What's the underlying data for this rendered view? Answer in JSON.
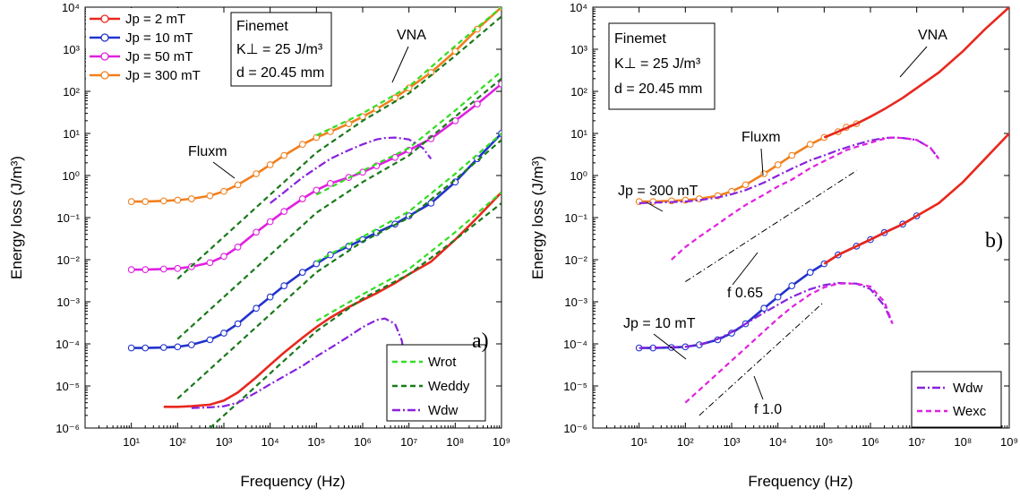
{
  "chart_data": [
    {
      "panel": "a)",
      "type": "line",
      "xlabel": "Frequency (Hz)",
      "ylabel": "Energy loss (J/m³)",
      "xscale": "log",
      "yscale": "log",
      "xlim": [
        1.0,
        1000000000.0
      ],
      "ylim": [
        1e-06,
        10000.0
      ],
      "grid": false,
      "xticks": [
        "10¹",
        "10²",
        "10³",
        "10⁴",
        "10⁵",
        "10⁶",
        "10⁷",
        "10⁸",
        "10⁹"
      ],
      "yticks": [
        "10⁻⁶",
        "10⁻⁵",
        "10⁻⁴",
        "10⁻³",
        "10⁻²",
        "10⁻¹",
        "10⁰",
        "10¹",
        "10²",
        "10³",
        "10⁴"
      ],
      "info_box": [
        "Finemet",
        "K⊥ = 25 J/m³",
        "d = 20.45 mm"
      ],
      "annotations": [
        {
          "text": "VNA",
          "target": [
            7000000.0,
            250
          ]
        },
        {
          "text": "Fluxm",
          "target": [
            6000.0,
            1.1
          ]
        }
      ],
      "legend_top": [
        {
          "label": "Jp = 2 mT",
          "color": "#e8281e"
        },
        {
          "label": "Jp = 10 mT",
          "color": "#2233cc"
        },
        {
          "label": "Jp = 50 mT",
          "color": "#e020e0"
        },
        {
          "label": "Jp = 300 mT",
          "color": "#f0801e"
        }
      ],
      "legend_bottom": [
        {
          "label": "Wrot",
          "color": "#33dd22",
          "style": "dashed"
        },
        {
          "label": "Weddy",
          "color": "#1a7a1a",
          "style": "dashed"
        },
        {
          "label": "Wdw",
          "color": "#8822dd",
          "style": "dashdot"
        }
      ],
      "series": [
        {
          "name": "Jp = 2 mT",
          "color": "#e8281e",
          "x": [
            50,
            100,
            200,
            500,
            1000.0,
            2000.0,
            5000.0,
            10000.0,
            20000.0,
            50000.0,
            100000.0,
            200000.0,
            500000.0,
            1000000.0,
            2000000.0,
            5000000.0,
            10000000.0,
            30000000.0,
            100000000.0,
            300000000.0,
            1000000000.0
          ],
          "y": [
            3.2e-06,
            3.2e-06,
            3.3e-06,
            3.6e-06,
            4.5e-06,
            7e-06,
            1.6e-05,
            3.2e-05,
            6.2e-05,
            0.00014,
            0.00025,
            0.00042,
            0.00075,
            0.0011,
            0.0016,
            0.0028,
            0.0045,
            0.009,
            0.03,
            0.1,
            0.4
          ]
        },
        {
          "name": "Jp = 10 mT",
          "color": "#2233cc",
          "x": [
            10,
            20,
            50,
            100,
            200,
            500,
            1000.0,
            2000.0,
            5000.0,
            10000.0,
            20000.0,
            50000.0,
            100000.0,
            200000.0,
            500000.0,
            1000000.0,
            2000000.0,
            5000000.0,
            10000000.0,
            30000000.0,
            100000000.0,
            300000000.0,
            1000000000.0
          ],
          "y": [
            8e-05,
            8e-05,
            8.2e-05,
            8.5e-05,
            9.5e-05,
            0.000125,
            0.00018,
            0.0003,
            0.0007,
            0.0013,
            0.0024,
            0.005,
            0.008,
            0.013,
            0.021,
            0.03,
            0.044,
            0.07,
            0.11,
            0.22,
            0.7,
            2.5,
            10.0
          ]
        },
        {
          "name": "Jp = 50 mT",
          "color": "#e020e0",
          "x": [
            10,
            20,
            50,
            100,
            200,
            500,
            1000.0,
            2000.0,
            5000.0,
            10000.0,
            20000.0,
            50000.0,
            100000.0,
            200000.0,
            500000.0,
            1000000.0,
            2000000.0,
            5000000.0,
            10000000.0,
            30000000.0,
            100000000.0,
            300000000.0,
            1000000000.0
          ],
          "y": [
            0.0058,
            0.0058,
            0.006,
            0.0062,
            0.0068,
            0.0085,
            0.012,
            0.02,
            0.045,
            0.08,
            0.14,
            0.28,
            0.45,
            0.65,
            0.9,
            1.2,
            1.7,
            2.7,
            4,
            7.5,
            20.0,
            50.0,
            150.0
          ]
        },
        {
          "name": "Jp = 300 mT",
          "color": "#f0801e",
          "x": [
            10,
            20,
            50,
            100,
            200,
            500,
            1000.0,
            2000.0,
            5000.0,
            10000.0,
            20000.0,
            50000.0,
            100000.0,
            200000.0,
            500000.0,
            1000000.0,
            2000000.0,
            5000000.0,
            10000000.0,
            30000000.0,
            100000000.0,
            300000000.0,
            1000000000.0
          ],
          "y": [
            0.24,
            0.24,
            0.25,
            0.26,
            0.28,
            0.33,
            0.42,
            0.6,
            1.1,
            1.8,
            3,
            5.5,
            8,
            11,
            17,
            25,
            38,
            70,
            120,
            280,
            900,
            3000.0,
            10000.0
          ]
        },
        {
          "name": "Wrot",
          "color": "#33dd22",
          "dash": "6,4",
          "x": [
            100000.0,
            1000000.0,
            10000000.0,
            100000000.0,
            1000000000.0
          ],
          "y": [
            0.00035,
            0.0015,
            0.006,
            0.045,
            0.4
          ]
        },
        {
          "name": "Wrot",
          "color": "#33dd22",
          "dash": "6,4",
          "x": [
            100000.0,
            1000000.0,
            10000000.0,
            100000000.0,
            1000000000.0
          ],
          "y": [
            0.009,
            0.035,
            0.14,
            1.1,
            10.0
          ]
        },
        {
          "name": "Wrot",
          "color": "#33dd22",
          "dash": "6,4",
          "x": [
            100000.0,
            1000000.0,
            10000000.0,
            100000000.0,
            1000000000.0
          ],
          "y": [
            0.35,
            1.3,
            4.5,
            35,
            300.0
          ]
        },
        {
          "name": "Wrot",
          "color": "#33dd22",
          "dash": "6,4",
          "x": [
            100000.0,
            1000000.0,
            10000000.0,
            100000000.0,
            1000000000.0
          ],
          "y": [
            9,
            30,
            130,
            1200.0,
            10000.0
          ]
        },
        {
          "name": "Weddy",
          "color": "#1a7a1a",
          "dash": "6,4",
          "x": [
            500,
            1000.0,
            10000.0,
            100000.0,
            1000000.0,
            10000000.0,
            100000000.0,
            1000000000.0
          ],
          "y": [
            1e-06,
            2e-06,
            2e-05,
            0.0002,
            0.0012,
            0.0045,
            0.03,
            0.22
          ]
        },
        {
          "name": "Weddy",
          "color": "#1a7a1a",
          "dash": "6,4",
          "x": [
            100,
            1000.0,
            10000.0,
            100000.0,
            1000000.0,
            10000000.0,
            100000000.0,
            1000000000.0
          ],
          "y": [
            5e-06,
            5e-05,
            0.0005,
            0.005,
            0.027,
            0.1,
            0.8,
            7
          ]
        },
        {
          "name": "Weddy",
          "color": "#1a7a1a",
          "dash": "6,4",
          "x": [
            100,
            1000.0,
            10000.0,
            100000.0,
            1000000.0,
            10000000.0,
            100000000.0,
            1000000000.0
          ],
          "y": [
            0.00013,
            0.0013,
            0.013,
            0.13,
            0.7,
            3,
            25.0,
            200.0
          ]
        },
        {
          "name": "Weddy",
          "color": "#1a7a1a",
          "dash": "6,4",
          "x": [
            100,
            1000.0,
            10000.0,
            100000.0,
            1000000.0,
            10000000.0,
            100000000.0,
            1000000000.0
          ],
          "y": [
            0.0035,
            0.035,
            0.35,
            3.5,
            20.0,
            90.0,
            700.0,
            6000.0
          ]
        },
        {
          "name": "Wdw",
          "color": "#8822dd",
          "dash": "9,3,2,3",
          "x": [
            200,
            500,
            1000.0,
            2000.0,
            5000.0,
            10000.0,
            20000.0,
            50000.0,
            100000.0,
            200000.0,
            500000.0,
            1000000.0,
            2000000.0,
            3000000.0,
            5000000.0,
            7000000.0,
            8000000.0
          ],
          "y": [
            3e-06,
            3.1e-06,
            3.3e-06,
            4e-06,
            7e-06,
            1.1e-05,
            1.7e-05,
            3e-05,
            5e-05,
            8e-05,
            0.00015,
            0.00025,
            0.00037,
            0.0004,
            0.0003,
            0.00012,
            4.5e-05
          ]
        },
        {
          "name": "Wdw",
          "color": "#8822dd",
          "dash": "9,3,2,3",
          "x": [
            10000.0,
            20000.0,
            50000.0,
            100000.0,
            200000.0,
            500000.0,
            1000000.0,
            2000000.0,
            3000000.0,
            5000000.0,
            10000000.0,
            20000000.0,
            30000000.0
          ],
          "y": [
            0.22,
            0.4,
            0.9,
            1.5,
            2.5,
            4,
            5.5,
            7.2,
            7.8,
            8,
            7.2,
            4.5,
            2.5
          ]
        }
      ]
    },
    {
      "panel": "b)",
      "type": "line",
      "xlabel": "Frequency (Hz)",
      "ylabel": "Energy loss (J/m³)",
      "xscale": "log",
      "yscale": "log",
      "xlim": [
        1.0,
        1000000000.0
      ],
      "ylim": [
        1e-06,
        10000.0
      ],
      "grid": false,
      "xticks": [
        "10¹",
        "10²",
        "10³",
        "10⁴",
        "10⁵",
        "10⁶",
        "10⁷",
        "10⁸",
        "10⁹"
      ],
      "yticks": [
        "10⁻⁶",
        "10⁻⁵",
        "10⁻⁴",
        "10⁻³",
        "10⁻²",
        "10⁻¹",
        "10⁰",
        "10¹",
        "10²",
        "10³",
        "10⁴"
      ],
      "info_box": [
        "Finemet",
        "K⊥ = 25 J/m³",
        "d = 20.45 mm"
      ],
      "annotations": [
        {
          "text": "VNA",
          "target": [
            30000000.0,
            400
          ]
        },
        {
          "text": "Fluxm",
          "target": [
            20000.0,
            2
          ]
        },
        {
          "text": "Jp = 300 mT",
          "target": [
            100,
            0.28
          ]
        },
        {
          "text": "Jp = 10 mT",
          "target": [
            150,
            0.0001
          ]
        },
        {
          "text": "f 0.65",
          "target": [
            150000.0,
            0.06
          ]
        },
        {
          "text": "f 1.0",
          "target": [
            60000.0,
            0.0001
          ]
        }
      ],
      "legend": [
        {
          "label": "Wdw",
          "color": "#8822dd",
          "style": "dashdot"
        },
        {
          "label": "Wexc",
          "color": "#e020e0",
          "style": "dashed"
        }
      ],
      "series": [
        {
          "name": "Jp = 300 mT",
          "color": "#f0801e",
          "x": [
            10,
            20,
            50,
            100,
            200,
            500,
            1000.0,
            2000.0,
            5000.0,
            10000.0,
            20000.0,
            50000.0,
            100000.0,
            200000.0,
            300000.0,
            500000.0
          ],
          "y": [
            0.24,
            0.24,
            0.25,
            0.26,
            0.28,
            0.33,
            0.42,
            0.6,
            1.1,
            1.8,
            3,
            5.5,
            8,
            11,
            14,
            17
          ]
        },
        {
          "name": "Jp = 300 mT",
          "color": "#e8281e",
          "x": [
            100000.0,
            200000.0,
            500000.0,
            1000000.0,
            2000000.0,
            5000000.0,
            10000000.0,
            30000000.0,
            100000000.0,
            300000000.0,
            1000000000.0
          ],
          "y": [
            8,
            11,
            17,
            25,
            38,
            70,
            120,
            280,
            900,
            3000.0,
            10000.0
          ]
        },
        {
          "name": "Jp = 10 mT",
          "color": "#2233cc",
          "x": [
            10,
            20,
            50,
            100,
            200,
            500,
            1000.0,
            2000.0,
            5000.0,
            10000.0,
            20000.0,
            50000.0,
            100000.0,
            200000.0,
            500000.0,
            1000000.0,
            2000000.0,
            5000000.0,
            10000000.0
          ],
          "y": [
            8e-05,
            8e-05,
            8.2e-05,
            8.5e-05,
            9.5e-05,
            0.000125,
            0.00018,
            0.0003,
            0.0007,
            0.0013,
            0.0024,
            0.005,
            0.008,
            0.013,
            0.021,
            0.03,
            0.044,
            0.07,
            0.11
          ]
        },
        {
          "name": "Jp = 10 mT",
          "color": "#e8281e",
          "x": [
            100000.0,
            200000.0,
            500000.0,
            1000000.0,
            2000000.0,
            5000000.0,
            10000000.0,
            30000000.0,
            100000000.0,
            300000000.0,
            1000000000.0
          ],
          "y": [
            0.008,
            0.013,
            0.021,
            0.03,
            0.044,
            0.07,
            0.11,
            0.22,
            0.7,
            2.5,
            10.0
          ]
        },
        {
          "name": "Wdw",
          "color": "#8822dd",
          "dash": "9,3,2,3",
          "x": [
            10,
            100,
            200,
            500,
            1000.0,
            2000.0,
            5000.0,
            10000.0,
            20000.0,
            50000.0,
            100000.0,
            200000.0,
            500000.0,
            1000000.0,
            2000000.0,
            3000000.0,
            5000000.0,
            10000000.0,
            20000000.0,
            30000000.0
          ],
          "y": [
            0.22,
            0.24,
            0.26,
            0.3,
            0.36,
            0.45,
            0.68,
            1,
            1.45,
            2.3,
            3,
            4,
            5.5,
            6.8,
            7.8,
            8,
            7.8,
            7,
            4.5,
            2.5
          ]
        },
        {
          "name": "Wdw",
          "color": "#8822dd",
          "dash": "9,3,2,3",
          "x": [
            10,
            100,
            200,
            500,
            1000.0,
            2000.0,
            5000.0,
            10000.0,
            20000.0,
            50000.0,
            100000.0,
            200000.0,
            500000.0,
            1000000.0,
            2000000.0,
            3000000.0
          ],
          "y": [
            8e-05,
            8.5e-05,
            9.5e-05,
            0.00013,
            0.00019,
            0.0003,
            0.00055,
            0.00085,
            0.0013,
            0.002,
            0.0025,
            0.0028,
            0.0027,
            0.002,
            0.0008,
            0.0003
          ]
        },
        {
          "name": "Wexc",
          "color": "#e020e0",
          "dash": "6,4",
          "x": [
            50,
            100,
            200,
            500,
            1000.0,
            2000.0,
            5000.0,
            10000.0,
            20000.0,
            50000.0,
            100000.0,
            200000.0,
            300000.0,
            500000.0,
            1000000.0,
            2000000.0,
            3000000.0,
            5000000.0,
            10000000.0,
            20000000.0,
            30000000.0
          ],
          "y": [
            0.01,
            0.02,
            0.035,
            0.07,
            0.12,
            0.2,
            0.35,
            0.55,
            0.8,
            1.5,
            2.2,
            3.2,
            4,
            4.8,
            6,
            7.5,
            8,
            7.8,
            7,
            4.5,
            2.5
          ]
        },
        {
          "name": "Wexc",
          "color": "#e020e0",
          "dash": "6,4",
          "x": [
            100,
            200,
            500,
            1000.0,
            2000.0,
            5000.0,
            10000.0,
            20000.0,
            50000.0,
            100000.0,
            200000.0,
            500000.0,
            1000000.0,
            2000000.0,
            3000000.0
          ],
          "y": [
            4e-06,
            8e-06,
            2e-05,
            4e-05,
            8e-05,
            0.0002,
            0.0004,
            0.00075,
            0.0015,
            0.0022,
            0.0027,
            0.0027,
            0.0023,
            0.001,
            0.0003
          ]
        },
        {
          "name": "f 0.65",
          "color": "#000000",
          "dash": "7,3,1.5,3",
          "x": [
            100,
            500000.0
          ],
          "y": [
            0.003,
            1.3
          ]
        },
        {
          "name": "f 1.0",
          "color": "#000000",
          "dash": "7,3,1.5,3",
          "x": [
            200,
            100000.0
          ],
          "y": [
            2e-06,
            0.001
          ]
        }
      ]
    }
  ]
}
